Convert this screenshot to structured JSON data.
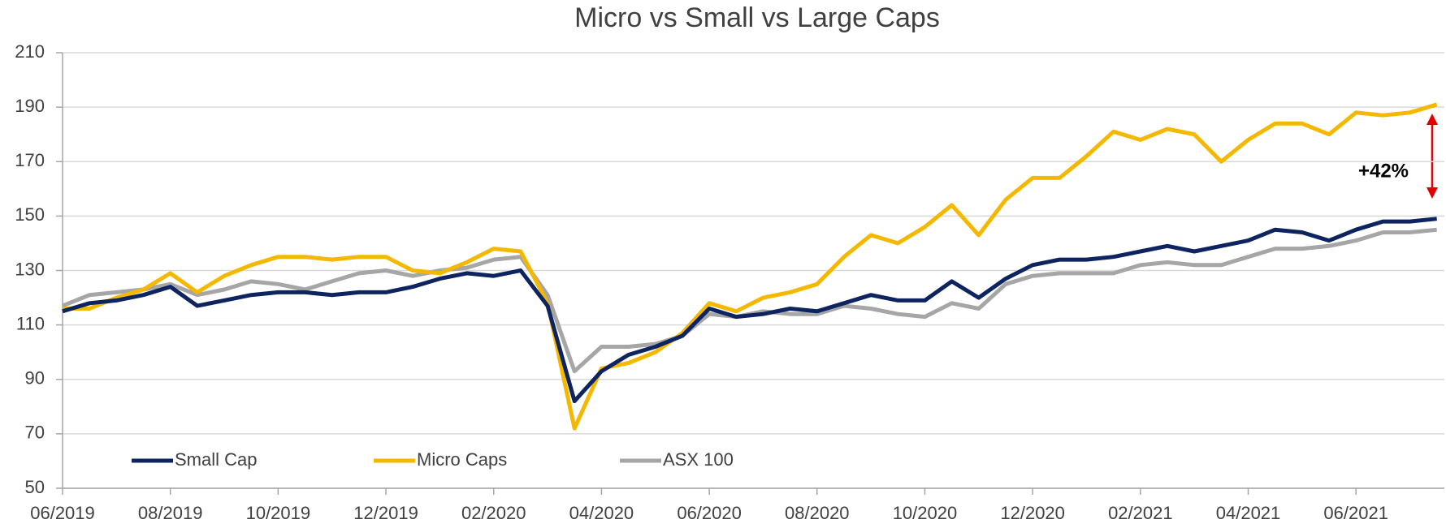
{
  "chart_data": {
    "type": "line",
    "title": "Micro vs Small vs Large Caps",
    "x": [
      0,
      0.5,
      1,
      1.5,
      2,
      2.5,
      3,
      3.5,
      4,
      4.5,
      5,
      5.5,
      6,
      6.5,
      7,
      7.5,
      8,
      8.5,
      9,
      9.5,
      10,
      10.5,
      11,
      11.5,
      12,
      12.5,
      13,
      13.5,
      14,
      14.5,
      15,
      15.5,
      16,
      16.5,
      17,
      17.5,
      18,
      18.5,
      19,
      19.5,
      20,
      20.5,
      21,
      21.5,
      22,
      22.5,
      23,
      23.5,
      24,
      24.5,
      25,
      25.5
    ],
    "series": [
      {
        "name": "Small Cap",
        "color": "#0d2461",
        "values": [
          115,
          118,
          119,
          121,
          124,
          117,
          119,
          121,
          122,
          122,
          121,
          122,
          122,
          124,
          127,
          129,
          128,
          130,
          117,
          82,
          93,
          99,
          102,
          106,
          116,
          113,
          114,
          116,
          115,
          118,
          121,
          119,
          119,
          126,
          120,
          127,
          132,
          134,
          134,
          135,
          137,
          139,
          137,
          139,
          141,
          145,
          144,
          141,
          145,
          148,
          148,
          149
        ]
      },
      {
        "name": "Micro Caps",
        "color": "#f5b800",
        "values": [
          116,
          116,
          120,
          123,
          129,
          122,
          128,
          132,
          135,
          135,
          134,
          135,
          135,
          130,
          129,
          133,
          138,
          137,
          118,
          72,
          94,
          96,
          100,
          107,
          118,
          115,
          120,
          122,
          125,
          135,
          143,
          140,
          146,
          154,
          143,
          156,
          164,
          164,
          172,
          181,
          178,
          182,
          180,
          170,
          178,
          184,
          184,
          180,
          188,
          187,
          188,
          191
        ]
      },
      {
        "name": "ASX 100",
        "color": "#a6a6a6",
        "values": [
          117,
          121,
          122,
          123,
          125,
          121,
          123,
          126,
          125,
          123,
          126,
          129,
          130,
          128,
          130,
          131,
          134,
          135,
          121,
          93,
          102,
          102,
          103,
          106,
          114,
          113,
          115,
          114,
          114,
          117,
          116,
          114,
          113,
          118,
          116,
          125,
          128,
          129,
          129,
          129,
          132,
          133,
          132,
          132,
          135,
          138,
          138,
          139,
          141,
          144,
          144,
          145
        ]
      }
    ],
    "xlim": [
      0,
      25.64
    ],
    "xticks": [
      {
        "value": 0,
        "label": "06/2019"
      },
      {
        "value": 2,
        "label": "08/2019"
      },
      {
        "value": 4,
        "label": "10/2019"
      },
      {
        "value": 6,
        "label": "12/2019"
      },
      {
        "value": 8,
        "label": "02/2020"
      },
      {
        "value": 10,
        "label": "04/2020"
      },
      {
        "value": 12,
        "label": "06/2020"
      },
      {
        "value": 14,
        "label": "08/2020"
      },
      {
        "value": 16,
        "label": "10/2020"
      },
      {
        "value": 18,
        "label": "12/2020"
      },
      {
        "value": 20,
        "label": "02/2021"
      },
      {
        "value": 22,
        "label": "04/2021"
      },
      {
        "value": 24,
        "label": "06/2021"
      }
    ],
    "ylim": [
      50,
      210
    ],
    "yticks": [
      50,
      70,
      90,
      110,
      130,
      150,
      170,
      190,
      210
    ],
    "grid": true,
    "annotations": [
      {
        "text": "+42%"
      }
    ]
  }
}
